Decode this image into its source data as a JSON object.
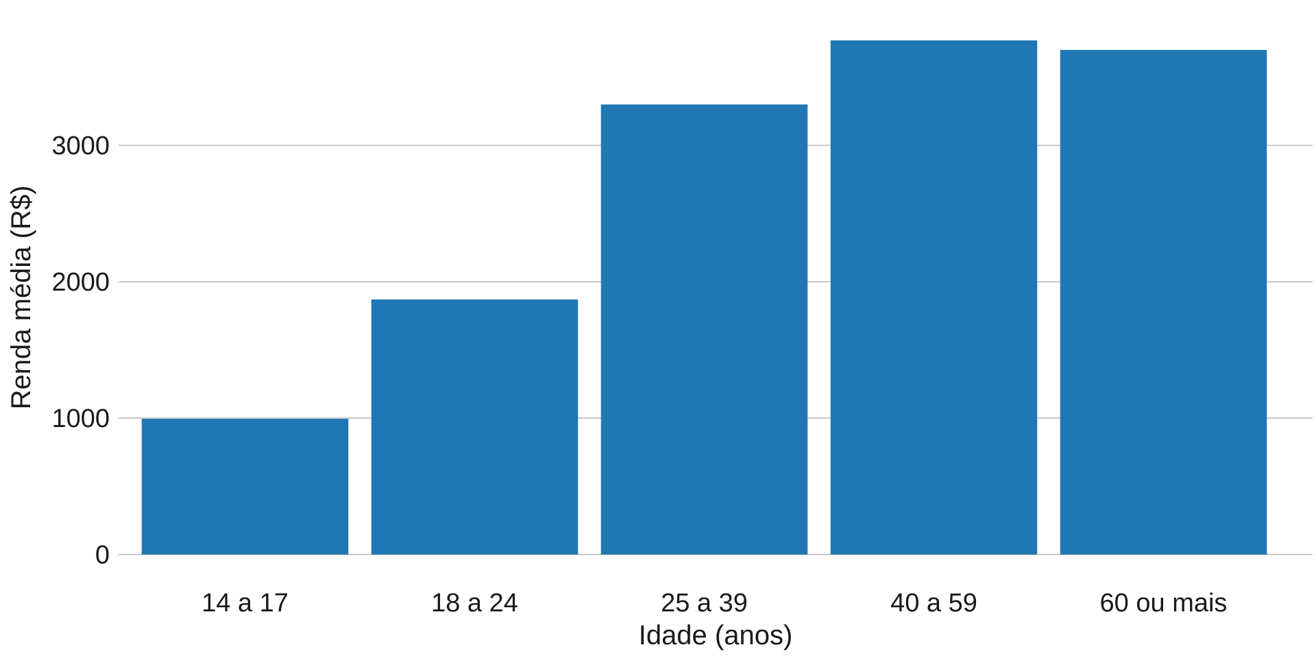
{
  "chart_data": {
    "type": "bar",
    "categories": [
      "14 a 17",
      "18 a 24",
      "25 a 39",
      "40 a 59",
      "60 ou mais"
    ],
    "values": [
      995,
      1870,
      3300,
      3770,
      3700
    ],
    "xlabel": "Idade (anos)",
    "ylabel": "Renda média (R$)",
    "ylim": [
      0,
      3850
    ],
    "yticks": [
      0,
      1000,
      2000,
      3000
    ],
    "grid": "horizontal",
    "legend": "none",
    "colors": {
      "bar": "#2077b4",
      "grid": "#c8c8c8",
      "text": "#1a1a1a"
    }
  }
}
